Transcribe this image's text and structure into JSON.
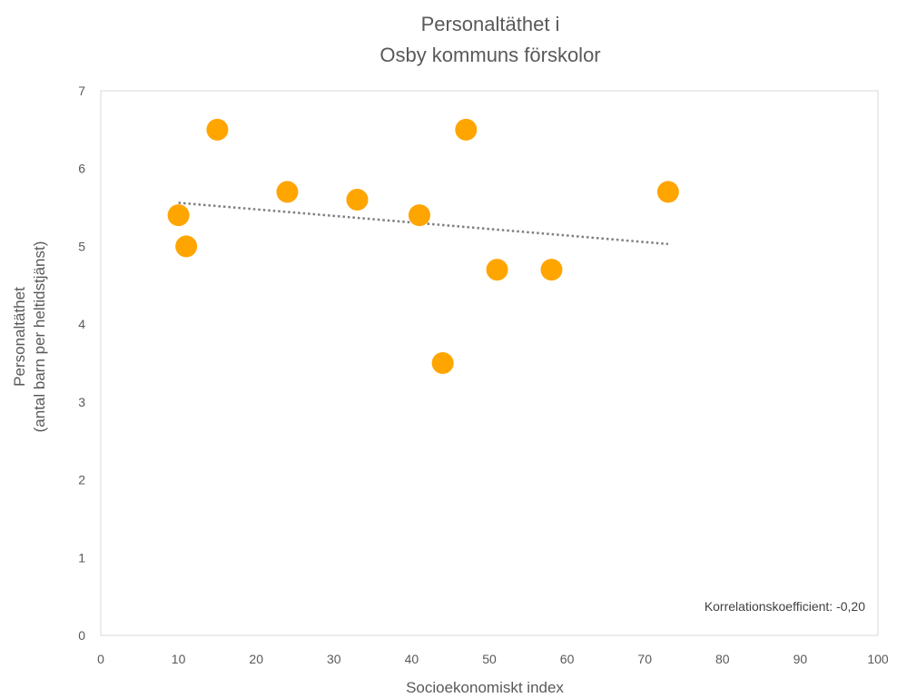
{
  "chart_data": {
    "type": "scatter",
    "title_lines": [
      "Personaltäthet i",
      "Osby kommuns förskolor"
    ],
    "xlabel": "Socioekonomiskt index",
    "ylabel_lines": [
      "Personaltäthet",
      "(antal barn per heltidstjänst)"
    ],
    "xlim": [
      0,
      100
    ],
    "ylim": [
      0,
      7
    ],
    "x_ticks": [
      "0",
      "10",
      "20",
      "30",
      "40",
      "50",
      "60",
      "70",
      "80",
      "90",
      "100"
    ],
    "y_ticks": [
      "0",
      "1",
      "2",
      "3",
      "4",
      "5",
      "6",
      "7"
    ],
    "grid": false,
    "series": [
      {
        "color": "#FFA500",
        "points": [
          {
            "x": 10,
            "y": 5.4
          },
          {
            "x": 11,
            "y": 5.0
          },
          {
            "x": 15,
            "y": 6.5
          },
          {
            "x": 24,
            "y": 5.7
          },
          {
            "x": 33,
            "y": 5.6
          },
          {
            "x": 41,
            "y": 5.4
          },
          {
            "x": 44,
            "y": 3.5
          },
          {
            "x": 47,
            "y": 6.5
          },
          {
            "x": 51,
            "y": 4.7
          },
          {
            "x": 58,
            "y": 4.7
          },
          {
            "x": 73,
            "y": 5.7
          }
        ]
      }
    ],
    "trendline": {
      "style": "dotted",
      "color": "#7F7F7F",
      "start": {
        "x": 10,
        "y": 5.56
      },
      "end": {
        "x": 73,
        "y": 5.03
      }
    },
    "annotation": "Korrelationskoefficient:  -0,20",
    "annotation_placement": "bottom-right"
  }
}
